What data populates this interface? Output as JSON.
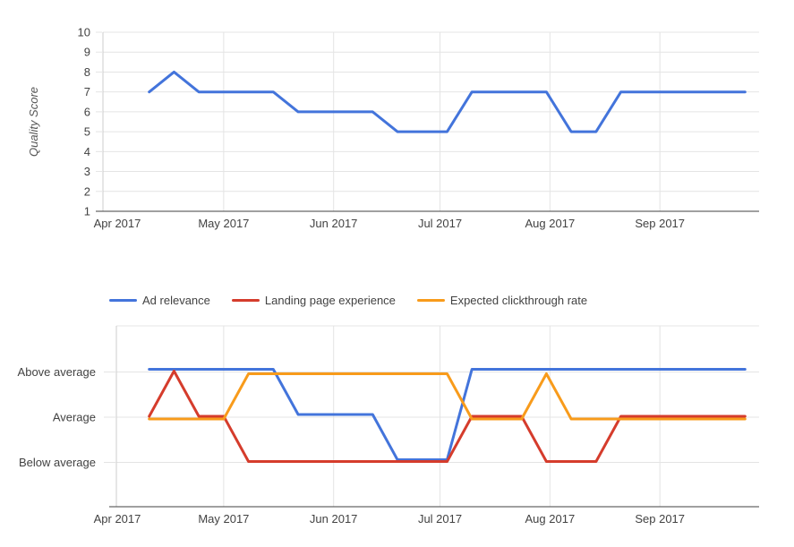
{
  "palette": {
    "blue": "#4374DB",
    "red": "#D53C2C",
    "orange": "#F89B1B",
    "gridline": "#E4E4E4",
    "axis_bottom_line": "#424242",
    "axis_side_line": "#CCCCCC",
    "tick_label_color": "#424242",
    "axis_title_color": "#555555",
    "legend_text_color": "#424242",
    "background": "#FFFFFF"
  },
  "chart_data": [
    {
      "type": "line",
      "title": "",
      "xlabel": "",
      "ylabel": "Quality Score",
      "ylim": [
        1,
        10
      ],
      "yticks": [
        1,
        2,
        3,
        4,
        5,
        6,
        7,
        8,
        9,
        10
      ],
      "grid": true,
      "legend_position": "none",
      "x_tick_labels": [
        "Apr 2017",
        "May 2017",
        "Jun 2017",
        "Jul 2017",
        "Aug 2017",
        "Sep 2017"
      ],
      "x_tick_dates": [
        "2017-04-01",
        "2017-05-01",
        "2017-06-01",
        "2017-07-01",
        "2017-08-01",
        "2017-09-01"
      ],
      "x": [
        "2017-04-10",
        "2017-04-17",
        "2017-04-24",
        "2017-05-01",
        "2017-05-08",
        "2017-05-15",
        "2017-05-22",
        "2017-05-29",
        "2017-06-05",
        "2017-06-12",
        "2017-06-19",
        "2017-06-26",
        "2017-07-03",
        "2017-07-10",
        "2017-07-17",
        "2017-07-24",
        "2017-07-31",
        "2017-08-07",
        "2017-08-14",
        "2017-08-21",
        "2017-08-28",
        "2017-09-04",
        "2017-09-11",
        "2017-09-18",
        "2017-09-25"
      ],
      "series": [
        {
          "name": "Quality Score",
          "color": "blue",
          "values": [
            7,
            8,
            7,
            7,
            7,
            7,
            6,
            6,
            6,
            6,
            5,
            5,
            5,
            7,
            7,
            7,
            7,
            5,
            5,
            7,
            7,
            7,
            7,
            7,
            7
          ]
        }
      ]
    },
    {
      "type": "line",
      "title": "",
      "xlabel": "",
      "ylabel": "",
      "y_categories": [
        "Above average",
        "Average",
        "Below average"
      ],
      "grid": true,
      "legend_position": "top",
      "x_tick_labels": [
        "Apr 2017",
        "May 2017",
        "Jun 2017",
        "Jul 2017",
        "Aug 2017",
        "Sep 2017"
      ],
      "x_tick_dates": [
        "2017-04-01",
        "2017-05-01",
        "2017-06-01",
        "2017-07-01",
        "2017-08-01",
        "2017-09-01"
      ],
      "x": [
        "2017-04-10",
        "2017-04-17",
        "2017-04-24",
        "2017-05-01",
        "2017-05-08",
        "2017-05-15",
        "2017-05-22",
        "2017-05-29",
        "2017-06-05",
        "2017-06-12",
        "2017-06-19",
        "2017-06-26",
        "2017-07-03",
        "2017-07-10",
        "2017-07-17",
        "2017-07-24",
        "2017-07-31",
        "2017-08-07",
        "2017-08-14",
        "2017-08-21",
        "2017-08-28",
        "2017-09-04",
        "2017-09-11",
        "2017-09-18",
        "2017-09-25"
      ],
      "series": [
        {
          "name": "Ad relevance",
          "color": "blue",
          "values": [
            "Above average",
            "Above average",
            "Above average",
            "Above average",
            "Above average",
            "Above average",
            "Average",
            "Average",
            "Average",
            "Average",
            "Below average",
            "Below average",
            "Below average",
            "Above average",
            "Above average",
            "Above average",
            "Above average",
            "Above average",
            "Above average",
            "Above average",
            "Above average",
            "Above average",
            "Above average",
            "Above average",
            "Above average"
          ]
        },
        {
          "name": "Landing page experience",
          "color": "red",
          "values": [
            "Average",
            "Above average",
            "Average",
            "Average",
            "Below average",
            "Below average",
            "Below average",
            "Below average",
            "Below average",
            "Below average",
            "Below average",
            "Below average",
            "Below average",
            "Average",
            "Average",
            "Average",
            "Below average",
            "Below average",
            "Below average",
            "Average",
            "Average",
            "Average",
            "Average",
            "Average",
            "Average"
          ]
        },
        {
          "name": "Expected clickthrough rate",
          "color": "orange",
          "values": [
            "Average",
            "Average",
            "Average",
            "Average",
            "Above average",
            "Above average",
            "Above average",
            "Above average",
            "Above average",
            "Above average",
            "Above average",
            "Above average",
            "Above average",
            "Average",
            "Average",
            "Average",
            "Above average",
            "Average",
            "Average",
            "Average",
            "Average",
            "Average",
            "Average",
            "Average",
            "Average"
          ]
        }
      ]
    }
  ]
}
